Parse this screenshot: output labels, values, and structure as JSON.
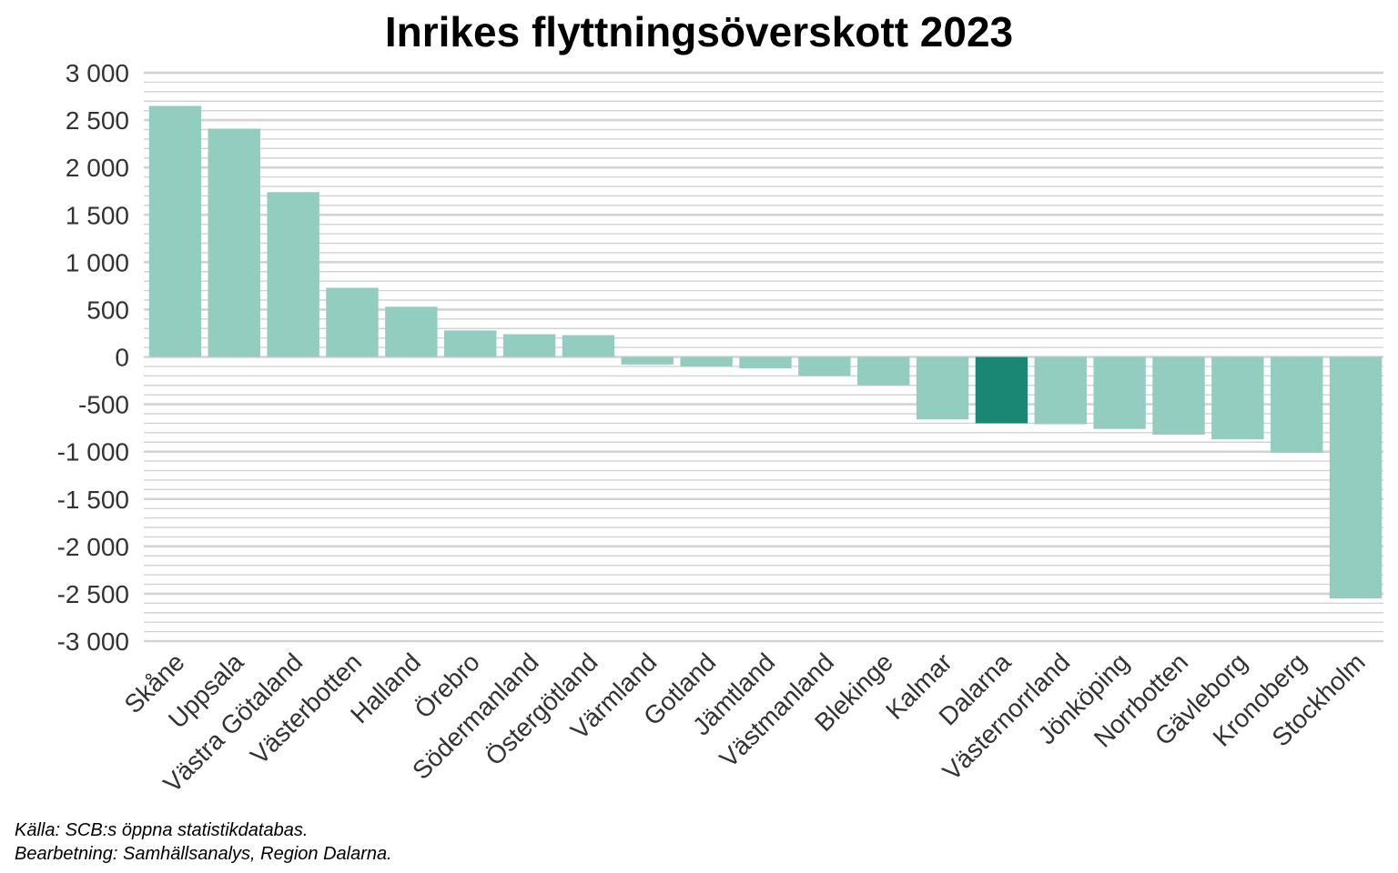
{
  "chart_data": {
    "type": "bar",
    "title": "Inrikes flyttningsöverskott 2023",
    "xlabel": "",
    "ylabel": "",
    "ylim": [
      -3000,
      3000
    ],
    "y_ticks": [
      3000,
      2500,
      2000,
      1500,
      1000,
      500,
      0,
      -500,
      -1000,
      -1500,
      -2000,
      -2500,
      -3000
    ],
    "y_tick_labels": [
      "3 000",
      "2 500",
      "2 000",
      "1 500",
      "1 000",
      "500",
      "0",
      "-500",
      "-1 000",
      "-1 500",
      "-2 000",
      "-2 500",
      "-3 000"
    ],
    "minor_grid_step": 100,
    "grid": true,
    "categories": [
      "Skåne",
      "Uppsala",
      "Västra Götaland",
      "Västerbotten",
      "Halland",
      "Örebro",
      "Södermanland",
      "Östergötland",
      "Värmland",
      "Gotland",
      "Jämtland",
      "Västmanland",
      "Blekinge",
      "Kalmar",
      "Dalarna",
      "Västernorrland",
      "Jönköping",
      "Norrbotten",
      "Gävleborg",
      "Kronoberg",
      "Stockholm"
    ],
    "values": [
      2650,
      2410,
      1740,
      730,
      530,
      280,
      240,
      230,
      -80,
      -100,
      -120,
      -200,
      -300,
      -660,
      -700,
      -710,
      -760,
      -820,
      -870,
      -1010,
      -2550
    ],
    "highlight_category": "Dalarna",
    "colors": {
      "bar": "#93cdc0",
      "highlight": "#1a8775",
      "grid": "#d3d3d3",
      "tick_text": "#333333"
    }
  },
  "captions": {
    "source": "Källa: SCB:s öppna statistikdatabas.",
    "processing": "Bearbetning: Samhällsanalys, Region Dalarna."
  }
}
